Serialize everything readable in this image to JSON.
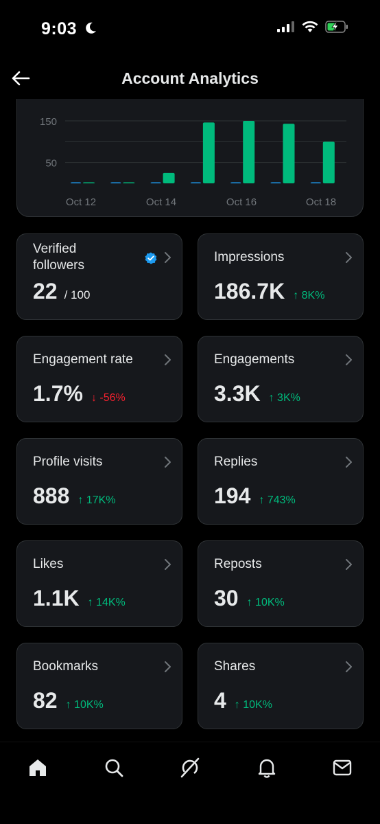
{
  "status_bar": {
    "time": "9:03"
  },
  "header": {
    "title": "Account Analytics"
  },
  "chart_data": {
    "type": "bar",
    "categories": [
      "Oct 12",
      "",
      "Oct 14",
      "",
      "Oct 16",
      "",
      "Oct 18"
    ],
    "x_tick_labels": [
      "Oct 12",
      "Oct 14",
      "Oct 16",
      "Oct 18"
    ],
    "y_tick_labels": [
      "150",
      "50"
    ],
    "ylim": [
      0,
      170
    ],
    "series": [
      {
        "color": "#1d9bf0",
        "values": [
          1,
          0,
          1,
          1,
          1,
          2,
          0
        ]
      },
      {
        "color": "#00ba7c",
        "values": [
          1,
          1,
          25,
          146,
          150,
          143,
          100
        ]
      }
    ],
    "grid": true
  },
  "stats": [
    {
      "label": "Verified followers",
      "value": "22",
      "sub": "/ 100",
      "change": "",
      "direction": ""
    },
    {
      "label": "Impressions",
      "value": "186.7K",
      "sub": "",
      "change": "↑ 8K%",
      "direction": "up"
    },
    {
      "label": "Engagement rate",
      "value": "1.7%",
      "sub": "",
      "change": "↓ -56%",
      "direction": "down"
    },
    {
      "label": "Engagements",
      "value": "3.3K",
      "sub": "",
      "change": "↑ 3K%",
      "direction": "up"
    },
    {
      "label": "Profile visits",
      "value": "888",
      "sub": "",
      "change": "↑ 17K%",
      "direction": "up"
    },
    {
      "label": "Replies",
      "value": "194",
      "sub": "",
      "change": "↑ 743%",
      "direction": "up"
    },
    {
      "label": "Likes",
      "value": "1.1K",
      "sub": "",
      "change": "↑ 14K%",
      "direction": "up"
    },
    {
      "label": "Reposts",
      "value": "30",
      "sub": "",
      "change": "↑ 10K%",
      "direction": "up"
    },
    {
      "label": "Bookmarks",
      "value": "82",
      "sub": "",
      "change": "↑ 10K%",
      "direction": "up"
    },
    {
      "label": "Shares",
      "value": "4",
      "sub": "",
      "change": "↑ 10K%",
      "direction": "up"
    }
  ],
  "nav": [
    "home-icon",
    "search-icon",
    "grok-icon",
    "notifications-icon",
    "messages-icon"
  ]
}
